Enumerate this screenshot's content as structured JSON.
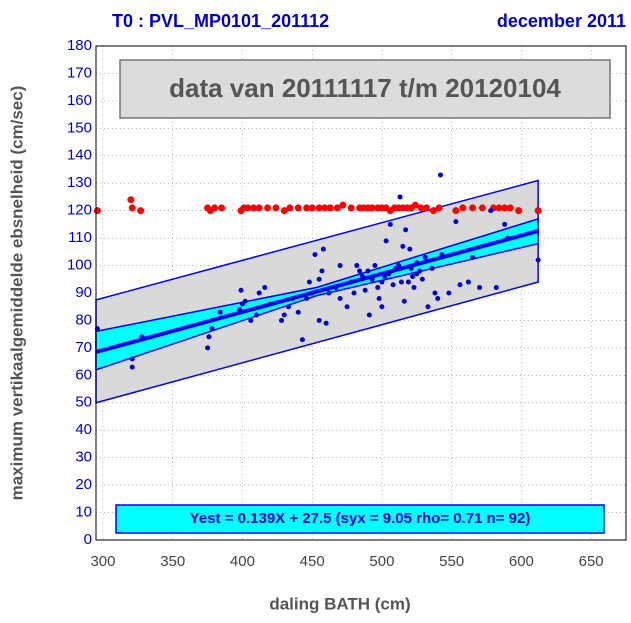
{
  "chart_data": {
    "type": "scatter",
    "title": "T0 : PVL_MP0101_201112",
    "subtitle": "december 2011",
    "annotation": "data van 20111117 t/m 20120104",
    "equation": "Yest = 0.139X + 27.5 (syx = 9.05 rho= 0.71 n= 92)",
    "xlabel": "daling BATH (cm)",
    "ylabel": "maximum vertikaalgemiddelde ebsnelheid (cm/sec)",
    "xlim": [
      295,
      675
    ],
    "ylim": [
      0,
      180
    ],
    "xticks": [
      300,
      350,
      400,
      450,
      500,
      550,
      600,
      650
    ],
    "yticks": [
      0,
      10,
      20,
      30,
      40,
      50,
      60,
      70,
      80,
      90,
      100,
      110,
      120,
      130,
      140,
      150,
      160,
      170,
      180
    ],
    "grid": true,
    "prediction_band": {
      "x": [
        295,
        612
      ],
      "upper": [
        87.5,
        131
      ],
      "lower": [
        50,
        94
      ],
      "color": "#d9d9d9"
    },
    "confidence_band": {
      "x": [
        295,
        453,
        612
      ],
      "upper": [
        76,
        92,
        117
      ],
      "lower": [
        62,
        89,
        108
      ],
      "color": "#00ffff"
    },
    "fit": {
      "x": [
        295,
        612
      ],
      "values": [
        68.5,
        112.6
      ],
      "color": "#0000ff"
    },
    "series": [
      {
        "color": "#ff0000",
        "x": [
          296,
          320,
          321,
          327,
          375,
          377,
          380,
          385,
          399,
          401,
          404,
          408,
          412,
          418,
          424,
          430,
          434,
          440,
          446,
          450,
          455,
          459,
          463,
          468,
          472,
          478,
          484,
          487,
          490,
          493,
          497,
          500,
          503,
          506,
          509,
          512,
          515,
          518,
          521,
          524,
          528,
          532,
          537,
          541,
          553,
          558,
          565,
          572,
          580,
          584,
          588,
          592,
          598,
          612
        ],
        "values": [
          120,
          124,
          121,
          120,
          121,
          120,
          121,
          121,
          120,
          121,
          121,
          121,
          121,
          121,
          121,
          120,
          121,
          121,
          121,
          121,
          121,
          121,
          121,
          121,
          122,
          121,
          121,
          121,
          121,
          121,
          121,
          121,
          121,
          120,
          121,
          121,
          121,
          121,
          121,
          122,
          121,
          121,
          120,
          121,
          120,
          121,
          121,
          121,
          121,
          121,
          121,
          121,
          120,
          120
        ]
      },
      {
        "color": "#0000dd",
        "x": [
          296,
          321,
          321,
          328,
          375,
          376,
          378,
          384,
          398,
          399,
          400,
          402,
          406,
          410,
          412,
          416,
          420,
          428,
          430,
          433,
          436,
          440,
          443,
          446,
          448,
          450,
          452,
          455,
          457,
          458,
          460,
          462,
          467,
          470,
          475,
          478,
          480,
          482,
          484,
          486,
          488,
          490,
          491,
          493,
          495,
          497,
          498,
          500,
          502,
          503,
          505,
          506,
          508,
          510,
          512,
          514,
          515,
          516,
          517,
          519,
          520,
          521,
          522,
          523,
          525,
          527,
          529,
          531,
          533,
          536,
          538,
          540,
          542,
          543,
          548,
          553,
          556,
          562,
          565,
          570,
          578,
          582,
          588,
          590,
          612,
          513,
          455,
          470,
          500,
          525
        ],
        "values": [
          77,
          63,
          66,
          74,
          70,
          74,
          77,
          83,
          84,
          91,
          86,
          87,
          80,
          82,
          90,
          92,
          86,
          80,
          82,
          85,
          88,
          83,
          73,
          88,
          94,
          90,
          104,
          80,
          98,
          106,
          79,
          90,
          92,
          88,
          85,
          94,
          90,
          100,
          98,
          96,
          91,
          98,
          82,
          95,
          100,
          92,
          88,
          94,
          96,
          109,
          97,
          115,
          93,
          99,
          100,
          94,
          107,
          87,
          113,
          94,
          106,
          99,
          96,
          92,
          101,
          98,
          95,
          103,
          85,
          99,
          90,
          88,
          133,
          104,
          90,
          116,
          93,
          94,
          103,
          92,
          120,
          92,
          115,
          110,
          102,
          125,
          95,
          100,
          85,
          97
        ]
      }
    ]
  }
}
